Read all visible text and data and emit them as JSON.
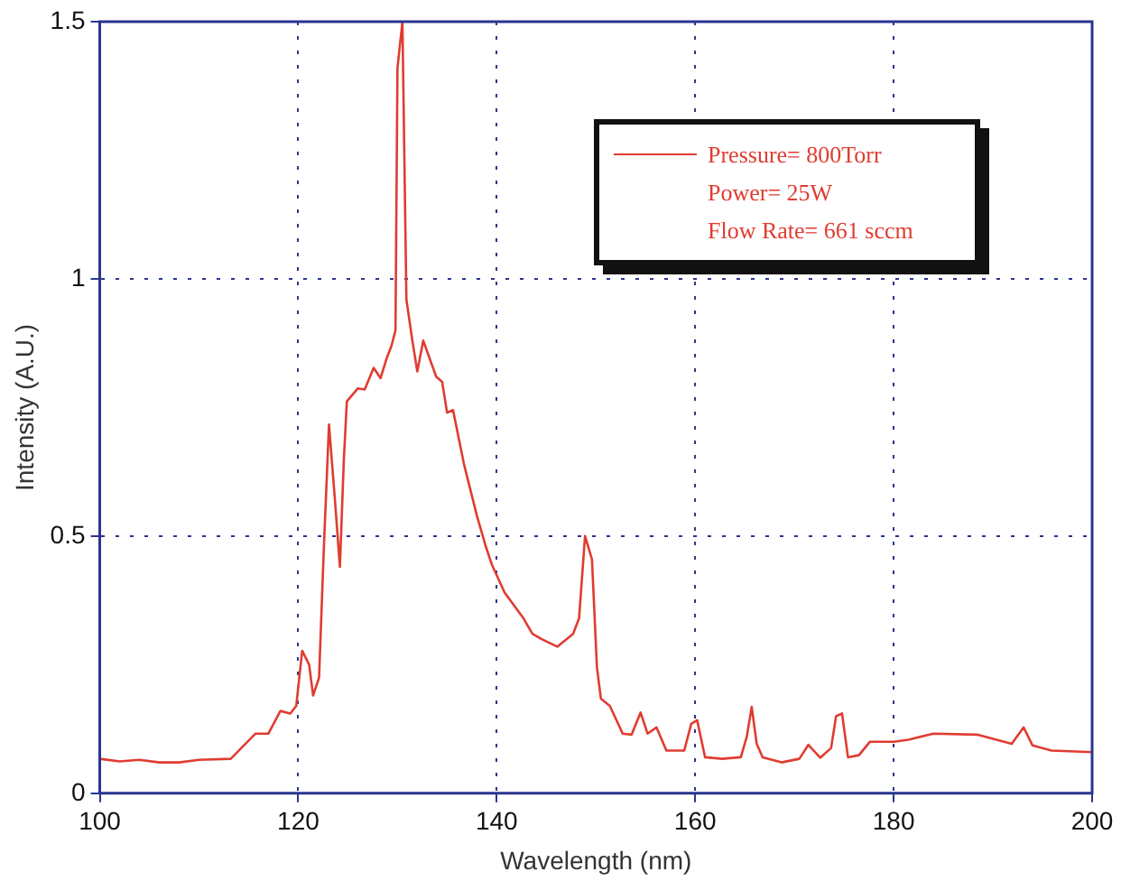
{
  "chart_data": {
    "type": "line",
    "xlabel": "Wavelength (nm)",
    "ylabel": "Intensity (A.U.)",
    "xlim": [
      100,
      200
    ],
    "xticks": [
      100,
      120,
      140,
      160,
      180,
      200
    ],
    "ylim": [
      0,
      1.5
    ],
    "yticks": [
      0,
      0.5,
      1,
      1.5
    ],
    "grid": true,
    "legend": "top right",
    "marker": "none",
    "line_style": "solid",
    "annotations": [
      "Power= 25W",
      "Flow Rate= 661 sccm"
    ],
    "series": [
      {
        "name": "Pressure= 800Torr",
        "color": "#e03c31",
        "x": [
          100,
          102,
          104,
          106,
          108,
          110,
          113.2,
          115.7,
          117,
          118.2,
          119.2,
          119.8,
          120.4,
          121.1,
          121.5,
          122.1,
          122.6,
          123.1,
          123.7,
          124.2,
          124.6,
          124.9,
          126,
          126.7,
          127.6,
          128.3,
          128.9,
          129.4,
          129.8,
          130,
          130.5,
          130.9,
          131.5,
          132,
          132.6,
          133.9,
          134.5,
          135,
          135.6,
          136.7,
          138,
          138.9,
          139.5,
          140.8,
          142.7,
          143.6,
          144.5,
          146.1,
          147.7,
          148.3,
          148.9,
          149.6,
          150.1,
          150.5,
          151.4,
          152.7,
          153.6,
          154.5,
          155.2,
          156.1,
          157.1,
          158.9,
          159.6,
          160.2,
          161,
          162.7,
          164.6,
          165.2,
          165.7,
          166.2,
          166.8,
          168.7,
          170.5,
          171.4,
          172.6,
          173.7,
          174.2,
          174.8,
          175.4,
          176.5,
          177.6,
          180,
          181.5,
          184,
          188.4,
          191.9,
          193.1,
          194,
          195.9,
          200
        ],
        "values": [
          0.067,
          0.062,
          0.065,
          0.06,
          0.06,
          0.065,
          0.067,
          0.116,
          0.116,
          0.16,
          0.155,
          0.17,
          0.277,
          0.25,
          0.19,
          0.225,
          0.486,
          0.717,
          0.57,
          0.44,
          0.65,
          0.762,
          0.787,
          0.785,
          0.827,
          0.807,
          0.845,
          0.87,
          0.9,
          1.41,
          1.5,
          0.96,
          0.88,
          0.82,
          0.88,
          0.81,
          0.8,
          0.74,
          0.745,
          0.64,
          0.54,
          0.48,
          0.445,
          0.39,
          0.34,
          0.31,
          0.3,
          0.285,
          0.31,
          0.34,
          0.5,
          0.455,
          0.245,
          0.184,
          0.17,
          0.116,
          0.114,
          0.157,
          0.116,
          0.128,
          0.083,
          0.083,
          0.135,
          0.142,
          0.07,
          0.067,
          0.07,
          0.11,
          0.168,
          0.096,
          0.07,
          0.06,
          0.067,
          0.094,
          0.069,
          0.088,
          0.15,
          0.155,
          0.07,
          0.074,
          0.1,
          0.1,
          0.104,
          0.116,
          0.114,
          0.096,
          0.128,
          0.093,
          0.083,
          0.08
        ]
      }
    ]
  }
}
